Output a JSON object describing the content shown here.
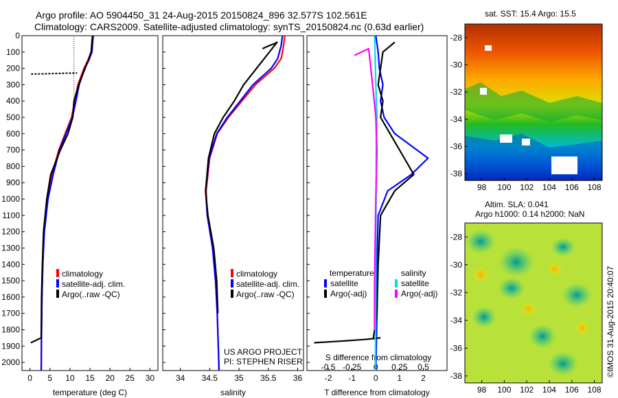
{
  "figure": {
    "title_line1": "Argo profile: AO 5904450_31 24-Aug-2015 20150824_896 32.577S 102.561E",
    "title_line2": "Climatology: CARS2009. Satellite-adjusted climatology: synTS_20150824.nc (0.63d earlier)",
    "project_line1": "US ARGO PROJECT",
    "project_line2": "PI: STEPHEN RISER",
    "credit": "©IMOS 31-Aug-2015 20:40:07"
  },
  "colors": {
    "climatology": "#ff0000",
    "satellite": "#0000ff",
    "argo": "#000000",
    "salinity_satellite": "#00e0e0",
    "salinity_argo": "#ff00ff"
  },
  "legend": {
    "climatology": "climatology",
    "satellite_adj": "satellite-adj. clim.",
    "argo_raw": "Argo(..raw -QC)",
    "temperature_header": "temperature",
    "salinity_header": "salinity",
    "satellite": "satellite",
    "argo_adj": "Argo(-adj)"
  },
  "map_labels": {
    "sst_title": "sat. SST: 15.4 Argo: 15.5",
    "sla_title1": "Altim. SLA: 0.041",
    "sla_title2": "Argo h1000: 0.14 h2000: NaN"
  },
  "chart_data": [
    {
      "type": "line",
      "xlabel": "temperature (deg C)",
      "ylabel": "",
      "xlim": [
        -2,
        32
      ],
      "ylim": [
        2050,
        0
      ],
      "xticks": [
        "0",
        "5",
        "10",
        "15",
        "20",
        "25",
        "30"
      ],
      "yticks": [
        "0",
        "100",
        "200",
        "300",
        "400",
        "500",
        "600",
        "700",
        "800",
        "900",
        "1000",
        "1100",
        "1200",
        "1300",
        "1400",
        "1500",
        "1600",
        "1700",
        "1800",
        "1900",
        "2000"
      ],
      "series": [
        {
          "name": "climatology",
          "color": "#ff0000",
          "x": [
            15.6,
            15.3,
            14.5,
            13.5,
            12.0,
            11.2,
            10.4,
            8.8,
            7.2,
            5.5,
            4.3,
            3.5,
            3.2,
            3.0,
            2.9,
            2.8
          ],
          "y": [
            0,
            100,
            150,
            200,
            300,
            400,
            500,
            600,
            700,
            850,
            1000,
            1200,
            1400,
            1600,
            1800,
            2050
          ]
        },
        {
          "name": "satellite-adj. clim.",
          "color": "#0000ff",
          "x": [
            15.8,
            15.5,
            14.7,
            13.7,
            12.3,
            11.5,
            10.6,
            9.0,
            7.4,
            5.8,
            4.5,
            3.6,
            3.2,
            3.0,
            2.9,
            2.8
          ],
          "y": [
            0,
            100,
            150,
            200,
            300,
            400,
            500,
            600,
            700,
            850,
            1000,
            1200,
            1400,
            1600,
            1800,
            2050
          ]
        },
        {
          "name": "Argo(..raw -QC)",
          "color": "#000000",
          "x": [
            15.7,
            15.3,
            14.6,
            13.3,
            12.2,
            11.0,
            10.7,
            9.5,
            7.6,
            5.2,
            4.2,
            3.4,
            3.1,
            2.9,
            2.8,
            0.2
          ],
          "y": [
            0,
            100,
            150,
            230,
            300,
            400,
            500,
            600,
            700,
            850,
            1000,
            1200,
            1400,
            1600,
            1850,
            1880
          ]
        },
        {
          "name": "",
          "color": "#000000",
          "dash": true,
          "x": [
            0.3,
            4.0,
            8.0,
            11.8
          ],
          "y": [
            235,
            233,
            230,
            228
          ]
        }
      ]
    },
    {
      "type": "line",
      "xlabel": "salinity",
      "ylabel": "",
      "xlim": [
        33.7,
        36.1
      ],
      "ylim": [
        2050,
        0
      ],
      "xticks": [
        "34",
        "34.5",
        "35",
        "35.5",
        "36"
      ],
      "series": [
        {
          "name": "climatology",
          "color": "#ff0000",
          "x": [
            35.78,
            35.76,
            35.72,
            35.6,
            35.28,
            35.05,
            34.82,
            34.63,
            34.5,
            34.44,
            34.46,
            34.55,
            34.6,
            34.63,
            34.66
          ],
          "y": [
            0,
            60,
            140,
            200,
            300,
            400,
            500,
            600,
            750,
            950,
            1100,
            1300,
            1500,
            1700,
            2050
          ]
        },
        {
          "name": "satellite-adj. clim.",
          "color": "#0000ff",
          "x": [
            35.74,
            35.72,
            35.66,
            35.55,
            35.24,
            35.02,
            34.8,
            34.62,
            34.49,
            34.43,
            34.46,
            34.55,
            34.6,
            34.63,
            34.66
          ],
          "y": [
            0,
            60,
            140,
            200,
            300,
            400,
            500,
            600,
            750,
            950,
            1100,
            1300,
            1500,
            1700,
            2050
          ]
        },
        {
          "name": "Argo(..raw -QC)",
          "color": "#000000",
          "x": [
            35.4,
            35.52,
            35.6,
            35.65,
            35.08,
            34.92,
            34.73,
            34.58,
            34.48,
            34.43,
            34.47,
            34.57,
            34.62,
            34.64
          ],
          "y": [
            80,
            60,
            50,
            40,
            300,
            400,
            500,
            600,
            750,
            950,
            1100,
            1300,
            1500,
            1700
          ]
        }
      ]
    },
    {
      "type": "line",
      "xlabel": "T difference from climatology",
      "ylabel": "",
      "secondary_xlabel": "S difference from climatology",
      "xlim": [
        -2.9,
        3.0
      ],
      "ylim": [
        2050,
        0
      ],
      "xticks": [
        "-2",
        "-1",
        "0",
        "1",
        "2"
      ],
      "secondary_xticks": [
        "-0.5",
        "-0.25",
        "0",
        "0.25",
        "0.5"
      ],
      "secondary_xlim": [
        -0.725,
        0.75
      ],
      "series": [
        {
          "name": "temperature satellite",
          "color": "#0000ff",
          "x": [
            0.0,
            0.1,
            0.15,
            0.3,
            0.2,
            0.35,
            0.8,
            2.2,
            1.5,
            0.5,
            0.1,
            0.05,
            0.05,
            0.0
          ],
          "y": [
            0,
            100,
            200,
            300,
            400,
            500,
            600,
            750,
            850,
            950,
            1100,
            1400,
            1700,
            2050
          ]
        },
        {
          "name": "temperature Argo(-adj)",
          "color": "#000000",
          "x": [
            0.8,
            0.3,
            0.2,
            0.1,
            0.3,
            0.2,
            0.6,
            1.2,
            1.6,
            0.8,
            0.2,
            0.1,
            0.05,
            -0.1
          ],
          "y": [
            40,
            100,
            200,
            300,
            400,
            500,
            600,
            750,
            850,
            950,
            1100,
            1400,
            1700,
            1850
          ]
        },
        {
          "name": "",
          "color": "#000000",
          "x": [
            -2.6,
            -1.5,
            -0.5,
            0.2
          ],
          "y": [
            1880,
            1870,
            1860,
            1850
          ]
        },
        {
          "name": "salinity satellite",
          "color": "#00e0e0",
          "x": [
            -0.05,
            -0.03,
            0.0,
            0.05,
            0.02,
            0.02,
            0.0,
            0.0,
            -0.02
          ],
          "y": [
            0,
            100,
            300,
            500,
            700,
            900,
            1200,
            1600,
            2050
          ]
        },
        {
          "name": "salinity Argo(-adj)",
          "color": "#ff00ff",
          "x": [
            -0.9,
            -0.6,
            -0.3,
            -0.1,
            0.0,
            0.05,
            0.0,
            -0.05,
            -0.05
          ],
          "y": [
            120,
            100,
            80,
            350,
            500,
            700,
            1000,
            1500,
            1800
          ]
        }
      ]
    }
  ],
  "maps": [
    {
      "name": "SST",
      "xticks": [
        "98",
        "100",
        "102",
        "104",
        "106",
        "108"
      ],
      "yticks": [
        "-28",
        "-30",
        "-32",
        "-34",
        "-36",
        "-38"
      ]
    },
    {
      "name": "SLA",
      "xticks": [
        "98",
        "100",
        "102",
        "104",
        "106",
        "108"
      ],
      "yticks": [
        "-28",
        "-30",
        "-32",
        "-34",
        "-36",
        "-38"
      ]
    }
  ]
}
